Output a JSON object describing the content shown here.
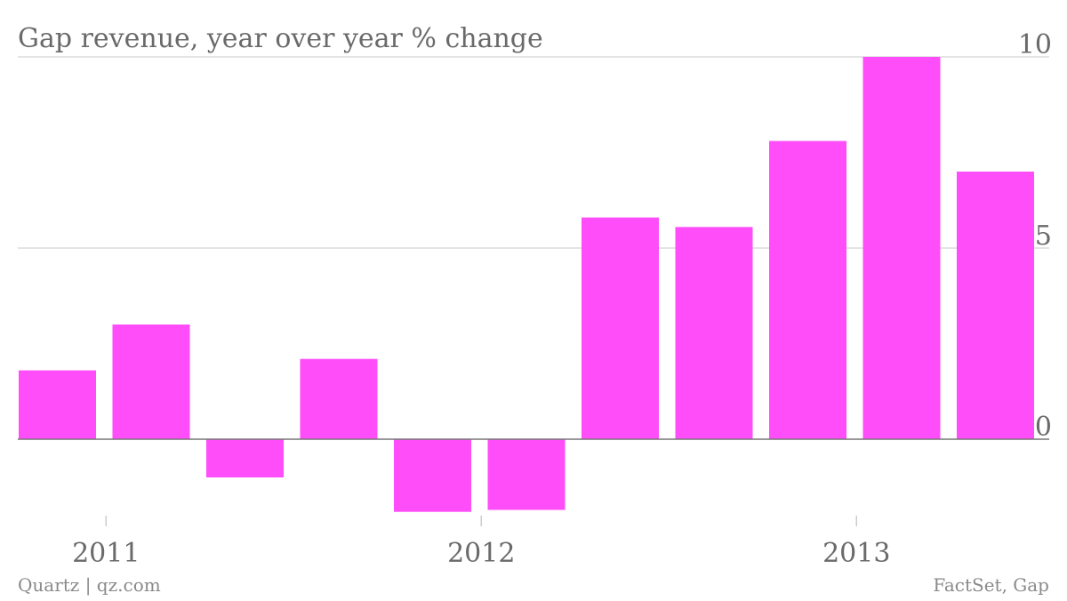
{
  "chart_data": {
    "type": "bar",
    "title": "Gap revenue, year over year % change",
    "xlabel": "",
    "ylabel": "",
    "ylim": [
      -2,
      10
    ],
    "yticks": [
      0,
      5,
      10
    ],
    "y_axis_side": "right",
    "grid": true,
    "legend": "none",
    "x_tick_labels": [
      {
        "label": "2011",
        "after_bar": 1
      },
      {
        "label": "2012",
        "after_bar": 5
      },
      {
        "label": "2013",
        "after_bar": 9
      }
    ],
    "values": [
      1.8,
      3.0,
      -1.0,
      2.1,
      -1.9,
      -1.85,
      5.8,
      5.55,
      7.8,
      10.0,
      7.0
    ],
    "color": "#ff4df9"
  },
  "source": {
    "brand": "Quartz | qz.com",
    "data_source": "FactSet, Gap"
  }
}
